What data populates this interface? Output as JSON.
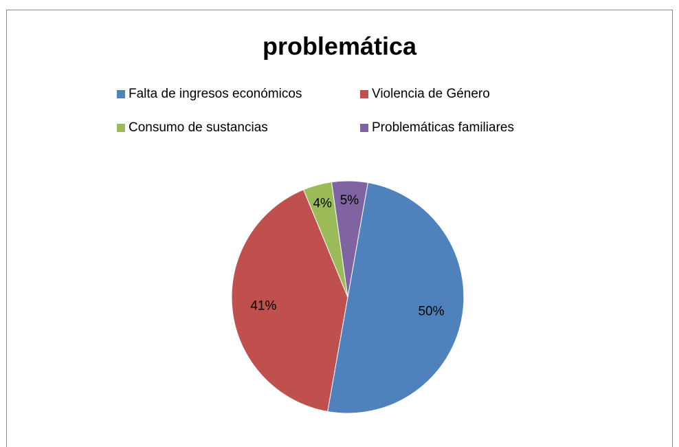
{
  "chart_data": {
    "type": "pie",
    "title": "problemática",
    "categories": [
      "Falta de ingresos económicos",
      "Violencia de Género",
      "Consumo de sustancias",
      "Problemáticas familiares"
    ],
    "values": [
      50,
      41,
      4,
      5
    ],
    "value_labels": [
      "50%",
      "41%",
      "4%",
      "5%"
    ],
    "colors": [
      "#4f81bd",
      "#c0504d",
      "#9bbb59",
      "#8064a2"
    ],
    "legend": "top"
  }
}
